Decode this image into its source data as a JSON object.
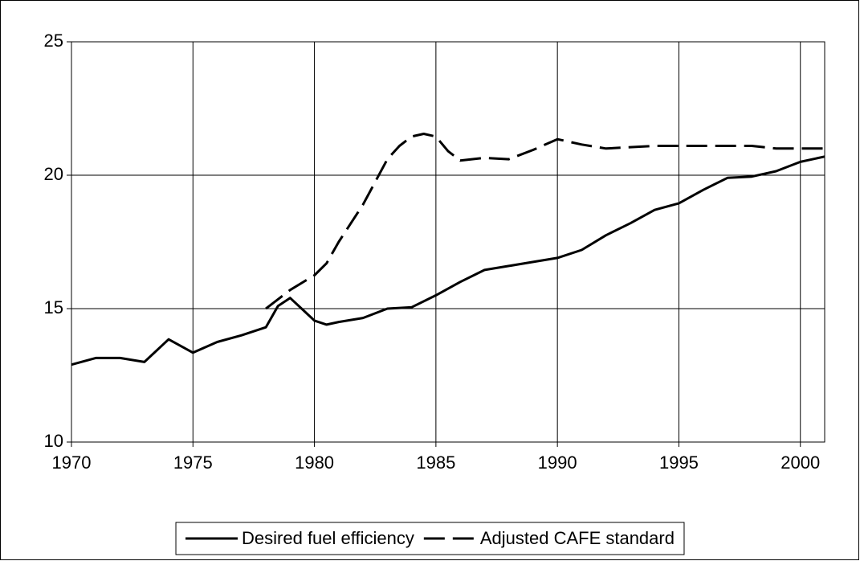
{
  "chart_data": {
    "type": "line",
    "xlim": [
      1970,
      2001
    ],
    "xticks": [
      1970,
      1975,
      1980,
      1985,
      1990,
      1995,
      2000
    ],
    "ylim": [
      10,
      25
    ],
    "yticks": [
      10,
      15,
      20,
      25
    ],
    "grid": true,
    "legend": "bottom",
    "series": [
      {
        "name": "Desired fuel efficiency",
        "color": "#000000",
        "dash": "solid",
        "x": [
          1970,
          1971,
          1972,
          1973,
          1974,
          1975,
          1976,
          1977,
          1978,
          1978.5,
          1979,
          1980,
          1980.5,
          1981,
          1982,
          1983,
          1984,
          1985,
          1986,
          1987,
          1988,
          1989,
          1990,
          1991,
          1992,
          1993,
          1994,
          1995,
          1996,
          1997,
          1998,
          1999,
          2000,
          2001
        ],
        "values": [
          12.9,
          13.15,
          13.15,
          13.0,
          13.85,
          13.35,
          13.75,
          14.0,
          14.3,
          15.1,
          15.4,
          14.55,
          14.4,
          14.5,
          14.65,
          15.0,
          15.05,
          15.5,
          16.0,
          16.45,
          16.6,
          16.75,
          16.9,
          17.2,
          17.75,
          18.2,
          18.7,
          18.95,
          19.45,
          19.9,
          19.95,
          20.15,
          20.5,
          20.7
        ]
      },
      {
        "name": "Adjusted CAFE standard",
        "color": "#000000",
        "dash": "dashed",
        "x": [
          1978,
          1979,
          1980,
          1980.5,
          1981,
          1982,
          1983,
          1983.5,
          1984,
          1984.5,
          1985,
          1985.5,
          1986,
          1987,
          1988,
          1989,
          1990,
          1991,
          1992,
          1993,
          1994,
          1995,
          1996,
          1997,
          1998,
          1999,
          2000,
          2001
        ],
        "values": [
          15.0,
          15.7,
          16.25,
          16.7,
          17.5,
          18.9,
          20.6,
          21.1,
          21.45,
          21.55,
          21.45,
          20.9,
          20.55,
          20.65,
          20.6,
          20.95,
          21.35,
          21.15,
          21.0,
          21.05,
          21.1,
          21.1,
          21.1,
          21.1,
          21.1,
          21.0,
          21.0,
          21.0
        ]
      }
    ]
  }
}
